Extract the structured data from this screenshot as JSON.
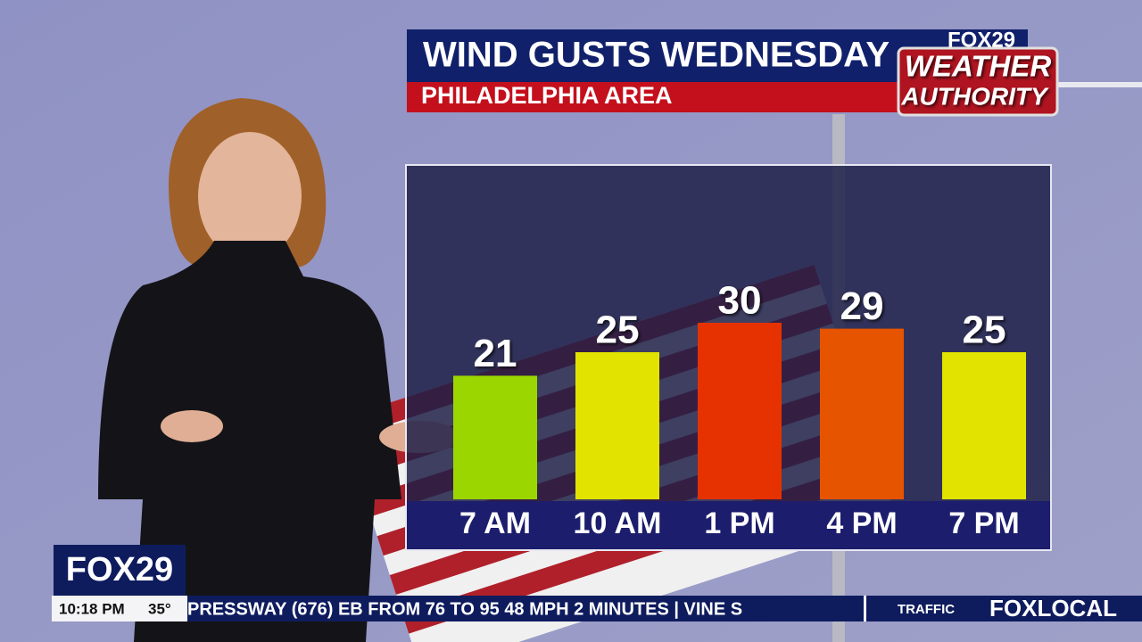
{
  "chart_data": {
    "type": "bar",
    "title": "WIND GUSTS WEDNESDAY",
    "subtitle": "PHILADELPHIA AREA",
    "categories": [
      "7 AM",
      "10 AM",
      "1 PM",
      "4 PM",
      "7 PM"
    ],
    "values": [
      21,
      25,
      30,
      29,
      25
    ],
    "colors": [
      "#9cd600",
      "#e2e400",
      "#e63200",
      "#e65400",
      "#e2e400"
    ]
  },
  "branding": {
    "logo_top": "FOX29",
    "logo_line1": "WEATHER",
    "logo_line2": "AUTHORITY"
  },
  "lower_third": {
    "station": "FOX29",
    "time": "10:18 PM",
    "temperature": "35°",
    "ticker": "PRESSWAY (676) EB FROM 76 TO 95 48 MPH   2 MINUTES   | VINE S",
    "segment": "TRAFFIC",
    "network": "FOXLOCAL"
  }
}
